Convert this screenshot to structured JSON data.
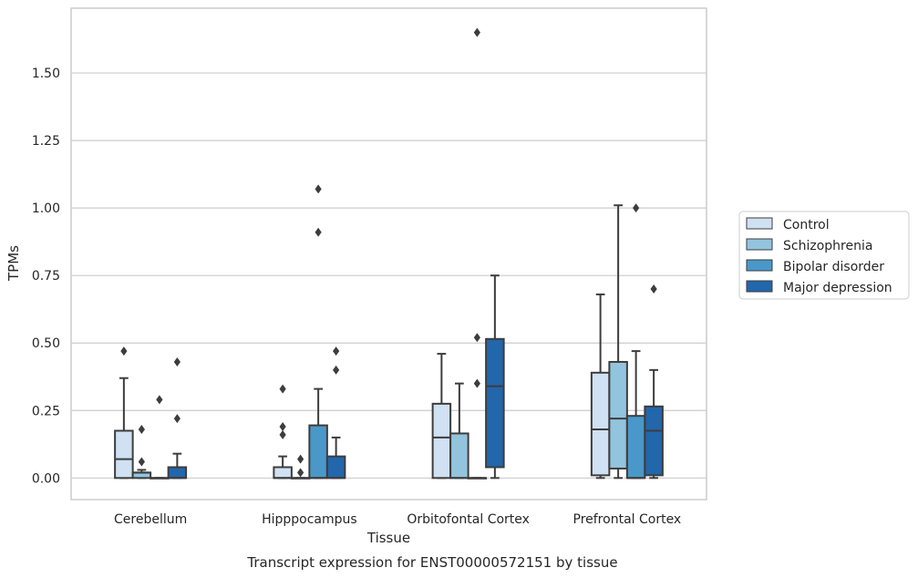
{
  "chart_data": {
    "type": "box",
    "title": "",
    "caption": "Transcript expression for ENST00000572151 by tissue",
    "xlabel": "Tissue",
    "ylabel": "TPMs",
    "ylim": [
      -0.08,
      1.74
    ],
    "yticks": [
      0.0,
      0.25,
      0.5,
      0.75,
      1.0,
      1.25,
      1.5
    ],
    "ytick_labels": [
      "0.00",
      "0.25",
      "0.50",
      "0.75",
      "1.00",
      "1.25",
      "1.50"
    ],
    "grid": "horizontal",
    "legend_position": "right",
    "categories": [
      "Cerebellum",
      "Hipppocampus",
      "Orbitofontal Cortex",
      "Prefrontal Cortex"
    ],
    "series": [
      {
        "name": "Control",
        "color": "#cfe1f2",
        "boxes": [
          {
            "whislo": 0.0,
            "q1": 0.0,
            "med": 0.07,
            "q3": 0.175,
            "whishi": 0.37,
            "fliers": [
              0.47
            ]
          },
          {
            "whislo": 0.0,
            "q1": 0.0,
            "med": 0.0,
            "q3": 0.04,
            "whishi": 0.08,
            "fliers": [
              0.16,
              0.19,
              0.33
            ]
          },
          {
            "whislo": 0.0,
            "q1": 0.0,
            "med": 0.15,
            "q3": 0.275,
            "whishi": 0.46,
            "fliers": []
          },
          {
            "whislo": 0.0,
            "q1": 0.01,
            "med": 0.18,
            "q3": 0.39,
            "whishi": 0.68,
            "fliers": []
          }
        ]
      },
      {
        "name": "Schizophrenia",
        "color": "#93c4de",
        "boxes": [
          {
            "whislo": 0.0,
            "q1": 0.0,
            "med": 0.02,
            "q3": 0.02,
            "whishi": 0.03,
            "fliers": [
              0.06,
              0.18
            ]
          },
          {
            "whislo": 0.0,
            "q1": 0.0,
            "med": 0.0,
            "q3": 0.0,
            "whishi": 0.0,
            "fliers": [
              0.02,
              0.07
            ]
          },
          {
            "whislo": 0.0,
            "q1": 0.0,
            "med": 0.0,
            "q3": 0.165,
            "whishi": 0.35,
            "fliers": []
          },
          {
            "whislo": 0.0,
            "q1": 0.035,
            "med": 0.22,
            "q3": 0.43,
            "whishi": 1.01,
            "fliers": []
          }
        ]
      },
      {
        "name": "Bipolar disorder",
        "color": "#4a98c9",
        "boxes": [
          {
            "whislo": 0.0,
            "q1": 0.0,
            "med": 0.0,
            "q3": 0.0,
            "whishi": 0.0,
            "fliers": [
              0.29
            ]
          },
          {
            "whislo": 0.0,
            "q1": 0.0,
            "med": 0.0,
            "q3": 0.195,
            "whishi": 0.33,
            "fliers": [
              0.91,
              1.07
            ]
          },
          {
            "whislo": 0.0,
            "q1": 0.0,
            "med": 0.0,
            "q3": 0.0,
            "whishi": 0.0,
            "fliers": [
              0.35,
              0.52,
              1.65
            ]
          },
          {
            "whislo": 0.0,
            "q1": 0.0,
            "med": 0.0,
            "q3": 0.23,
            "whishi": 0.47,
            "fliers": [
              1.0
            ]
          }
        ]
      },
      {
        "name": "Major depression",
        "color": "#2266ac",
        "boxes": [
          {
            "whislo": 0.0,
            "q1": 0.0,
            "med": 0.0,
            "q3": 0.04,
            "whishi": 0.09,
            "fliers": [
              0.22,
              0.43
            ]
          },
          {
            "whislo": 0.0,
            "q1": 0.0,
            "med": 0.0,
            "q3": 0.08,
            "whishi": 0.15,
            "fliers": [
              0.4,
              0.47
            ]
          },
          {
            "whislo": 0.0,
            "q1": 0.04,
            "med": 0.34,
            "q3": 0.515,
            "whishi": 0.75,
            "fliers": []
          },
          {
            "whislo": 0.0,
            "q1": 0.01,
            "med": 0.175,
            "q3": 0.265,
            "whishi": 0.4,
            "fliers": [
              0.7
            ]
          }
        ]
      }
    ]
  }
}
